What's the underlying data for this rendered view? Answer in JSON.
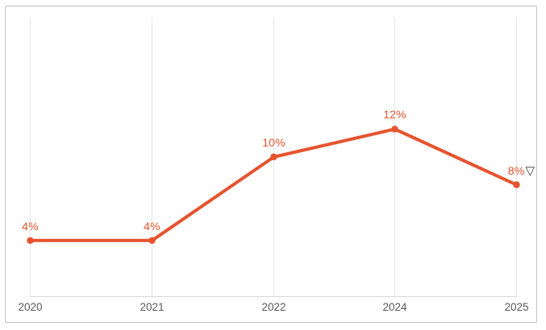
{
  "card": {
    "background": "#ffffff",
    "border_color": "#c2c2c2"
  },
  "chart_data": {
    "type": "line",
    "title": "",
    "xlabel": "",
    "ylabel": "",
    "categories": [
      "2020",
      "2021",
      "2022",
      "2024",
      "2025"
    ],
    "values": [
      4,
      4,
      10,
      12,
      8
    ],
    "point_labels": [
      "4%",
      "4%",
      "10%",
      "12%",
      "8%"
    ],
    "last_point_symbol": "▽",
    "ylim": [
      0,
      20
    ],
    "grid": "vertical-only",
    "legend": "none",
    "colors": {
      "line": "#e6532e",
      "marker": "#e6532e",
      "point_label": "#e6532e",
      "axis_text": "#595959",
      "gridline": "#e6e6e6",
      "axis_line": "#d8d8d8",
      "triangle": "#3a3a3a"
    }
  }
}
